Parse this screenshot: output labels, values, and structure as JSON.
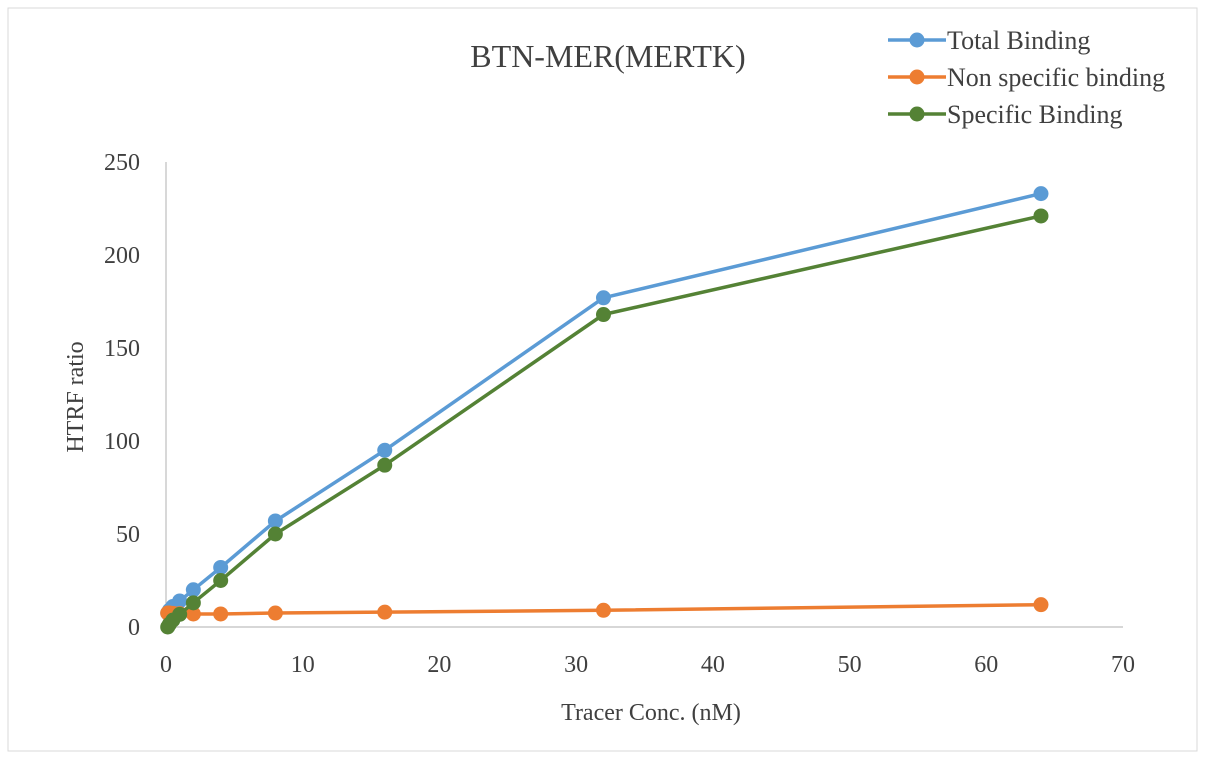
{
  "chart_data": {
    "type": "line",
    "title": "BTN-MER(MERTK)",
    "xlabel": "Tracer Conc. (nM)",
    "ylabel": "HTRF ratio",
    "xlim": [
      0,
      70
    ],
    "ylim": [
      0,
      250
    ],
    "xticks": [
      0,
      10,
      20,
      30,
      40,
      50,
      60,
      70
    ],
    "yticks": [
      0,
      50,
      100,
      150,
      200,
      250
    ],
    "grid": false,
    "legend_position": "top-right",
    "series": [
      {
        "name": "Total Binding",
        "color": "#5b9bd5",
        "x": [
          0.125,
          0.25,
          0.5,
          1,
          2,
          4,
          8,
          16,
          32,
          64
        ],
        "y": [
          7.5,
          9,
          11,
          14,
          20,
          32,
          57,
          95,
          177,
          233
        ]
      },
      {
        "name": "Non specific binding",
        "color": "#ed7d31",
        "x": [
          0.125,
          0.25,
          0.5,
          1,
          2,
          4,
          8,
          16,
          32,
          64
        ],
        "y": [
          7.5,
          7.5,
          7.3,
          7.2,
          7,
          7,
          7.5,
          8,
          9,
          12
        ]
      },
      {
        "name": "Specific Binding",
        "color": "#548235",
        "x": [
          0.125,
          0.25,
          0.5,
          1,
          2,
          4,
          8,
          16,
          32,
          64
        ],
        "y": [
          0,
          1.5,
          3.7,
          6.8,
          13,
          25,
          50,
          87,
          168,
          221
        ]
      }
    ]
  }
}
